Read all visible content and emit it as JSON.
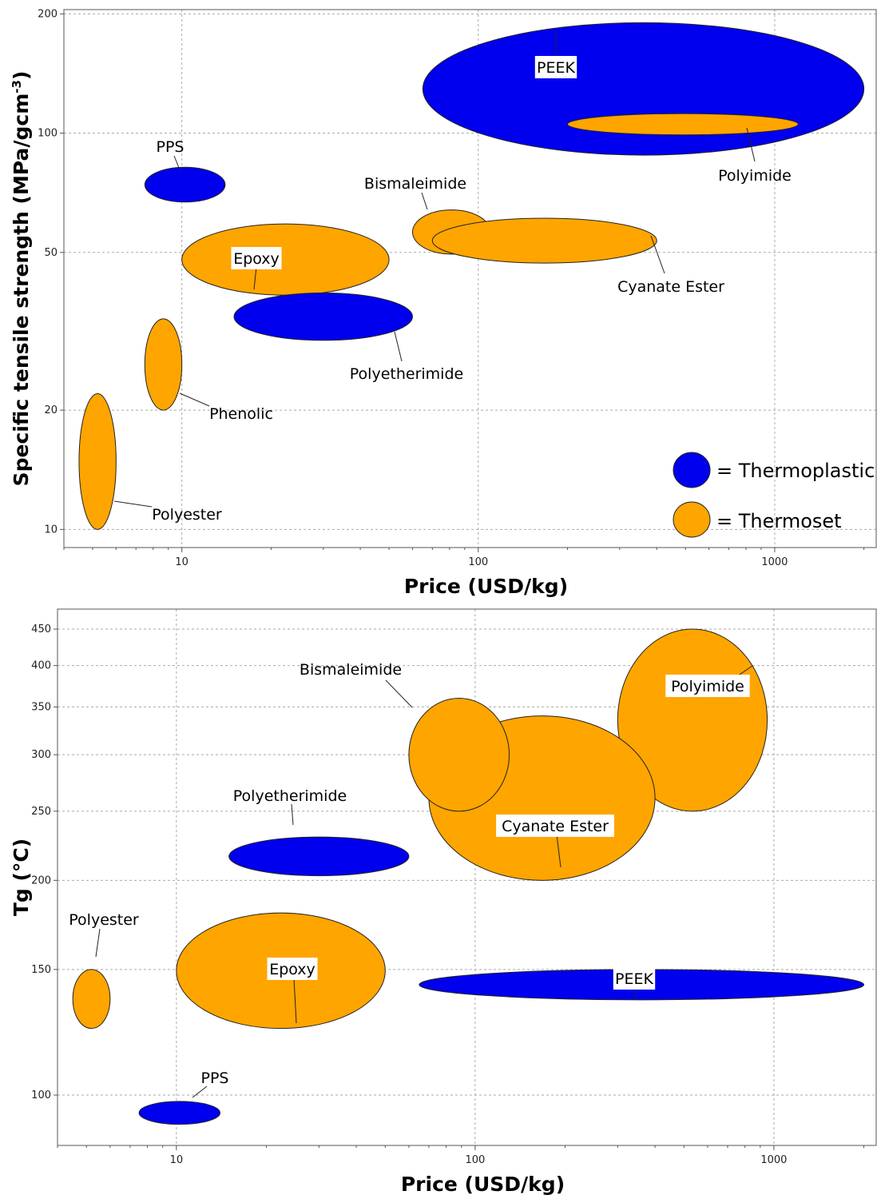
{
  "colors": {
    "thermoplastic": "#0000ee",
    "thermoset": "#ffa500",
    "grid": "#aaaaaa"
  },
  "legend": {
    "thermoplastic": "= Thermoplastic",
    "thermoset": "= Thermoset",
    "placement": "bottom-right"
  },
  "chart_data": [
    {
      "type": "scatter",
      "marker": "ellipse (price range × property range)",
      "xlabel": "Price (USD/kg)",
      "ylabel": "Specific tensile strength (MPa/gcm",
      "ylabel_sup": "-3",
      "ylabel_close": ")",
      "xscale": "log",
      "yscale": "log",
      "xlim": [
        4,
        2200
      ],
      "ylim": [
        9,
        205
      ],
      "xticks": [
        10,
        100,
        1000
      ],
      "yticks": [
        10,
        20,
        50,
        100,
        200
      ],
      "grid": true,
      "series": [
        {
          "name": "PEEK",
          "class": "thermoplastic",
          "x": [
            65,
            2000
          ],
          "y": [
            88,
            190
          ]
        },
        {
          "name": "Polyimide",
          "class": "thermoset",
          "x": [
            200,
            1200
          ],
          "y": [
            99,
            112
          ]
        },
        {
          "name": "PPS",
          "class": "thermoplastic",
          "x": [
            7.5,
            14
          ],
          "y": [
            67,
            82
          ]
        },
        {
          "name": "Bismaleimide",
          "class": "thermoset",
          "x": [
            60,
            110
          ],
          "y": [
            49.5,
            64
          ]
        },
        {
          "name": "Cyanate Ester",
          "class": "thermoset",
          "x": [
            70,
            400
          ],
          "y": [
            47,
            61
          ]
        },
        {
          "name": "Epoxy",
          "class": "thermoset",
          "x": [
            10,
            50
          ],
          "y": [
            39,
            59
          ]
        },
        {
          "name": "Polyetherimide",
          "class": "thermoplastic",
          "x": [
            15,
            60
          ],
          "y": [
            30,
            39.5
          ]
        },
        {
          "name": "Phenolic",
          "class": "thermoset",
          "x": [
            7.5,
            10
          ],
          "y": [
            20,
            34
          ]
        },
        {
          "name": "Polyester",
          "class": "thermoset",
          "x": [
            4.5,
            6
          ],
          "y": [
            10,
            22
          ]
        }
      ]
    },
    {
      "type": "scatter",
      "marker": "ellipse (price range × property range)",
      "xlabel": "Price (USD/kg)",
      "ylabel": "Tg (°C)",
      "xscale": "log",
      "yscale": "log",
      "xlim": [
        4,
        2200
      ],
      "ylim": [
        85,
        480
      ],
      "xticks": [
        10,
        100,
        1000
      ],
      "yticks": [
        100,
        150,
        200,
        250,
        300,
        350,
        400,
        450
      ],
      "grid": true,
      "series": [
        {
          "name": "Polyimide",
          "class": "thermoset",
          "x": [
            300,
            950
          ],
          "y": [
            250,
            450
          ]
        },
        {
          "name": "Cyanate Ester",
          "class": "thermoset",
          "x": [
            70,
            400
          ],
          "y": [
            200,
            340
          ]
        },
        {
          "name": "Bismaleimide",
          "class": "thermoset",
          "x": [
            60,
            130
          ],
          "y": [
            250,
            360
          ]
        },
        {
          "name": "Polyetherimide",
          "class": "thermoplastic",
          "x": [
            15,
            60
          ],
          "y": [
            203,
            230
          ]
        },
        {
          "name": "Polyester",
          "class": "thermoset",
          "x": [
            4.5,
            6
          ],
          "y": [
            124,
            150
          ]
        },
        {
          "name": "Epoxy",
          "class": "thermoset",
          "x": [
            10,
            50
          ],
          "y": [
            124,
            180
          ]
        },
        {
          "name": "PEEK",
          "class": "thermoplastic",
          "x": [
            65,
            2000
          ],
          "y": [
            136,
            150
          ]
        },
        {
          "name": "PPS",
          "class": "thermoplastic",
          "x": [
            7.5,
            14
          ],
          "y": [
            91,
            98
          ]
        }
      ]
    }
  ]
}
